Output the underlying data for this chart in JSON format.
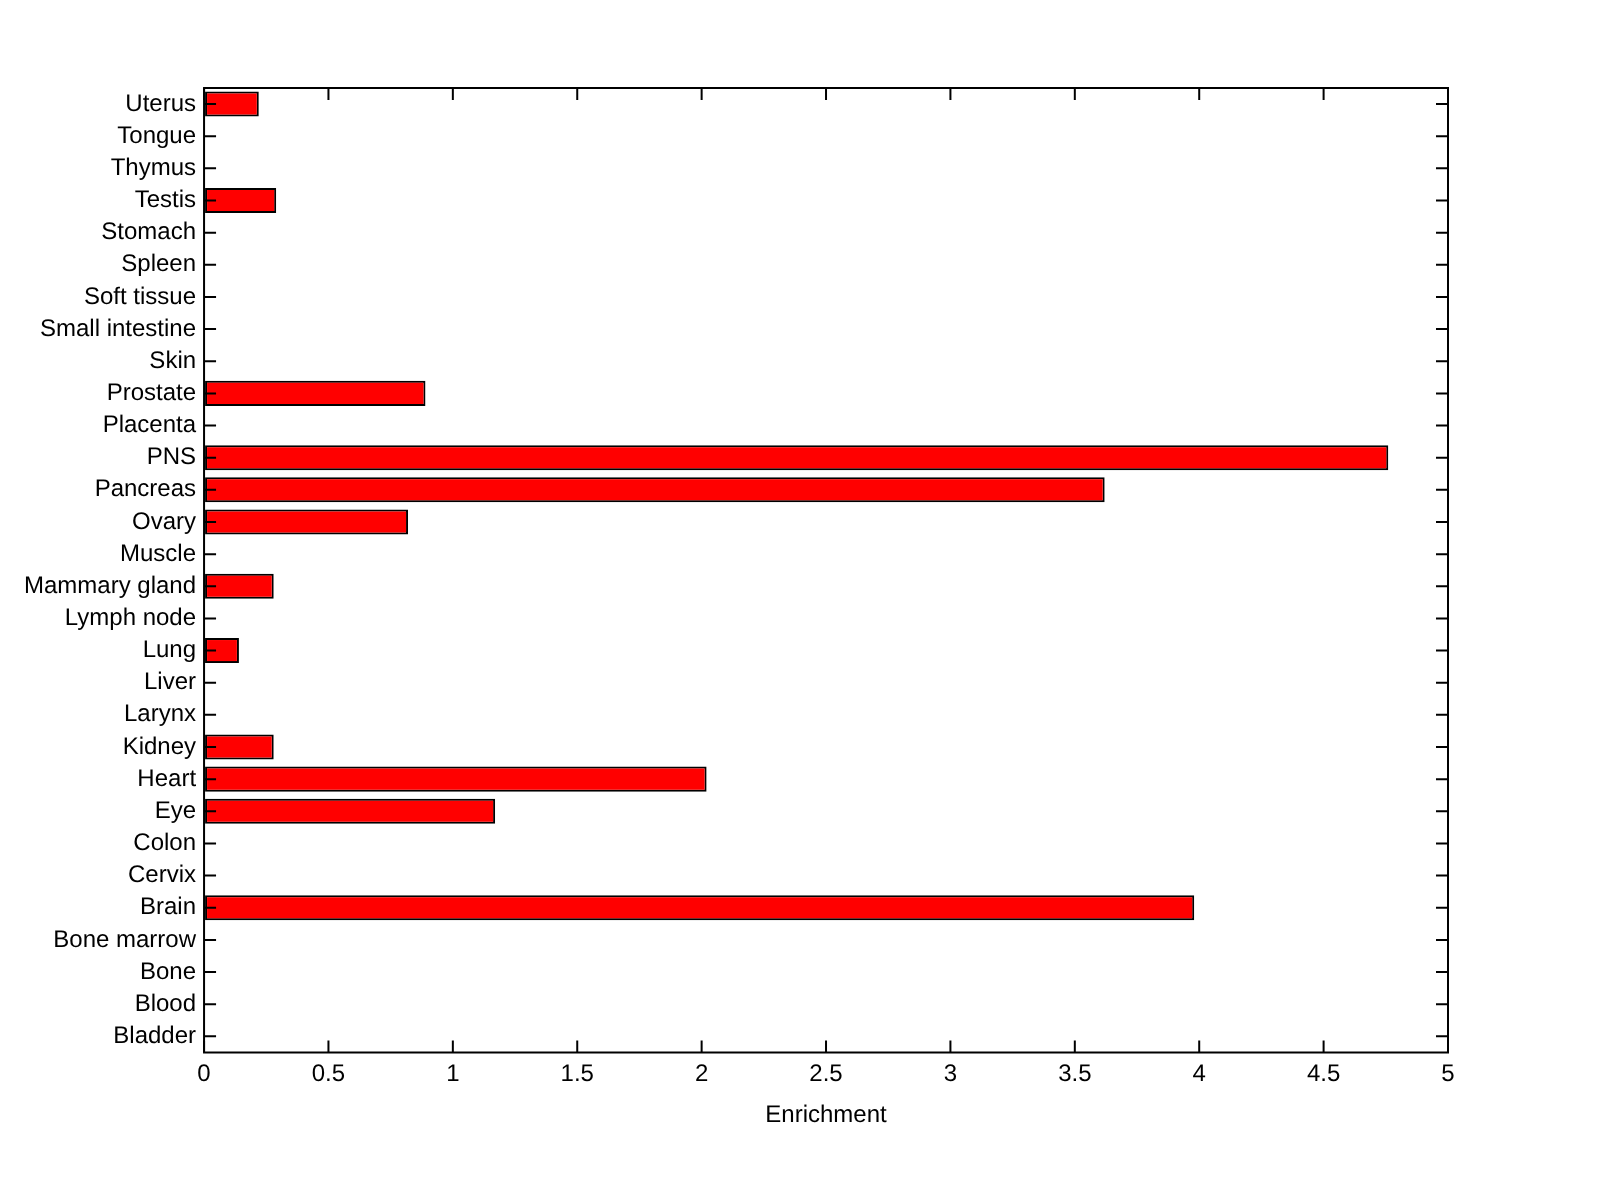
{
  "chart_data": {
    "type": "bar",
    "orientation": "horizontal",
    "xlabel": "Enrichment",
    "categories": [
      "Uterus",
      "Tongue",
      "Thymus",
      "Testis",
      "Stomach",
      "Spleen",
      "Soft tissue",
      "Small intestine",
      "Skin",
      "Prostate",
      "Placenta",
      "PNS",
      "Pancreas",
      "Ovary",
      "Muscle",
      "Mammary gland",
      "Lymph node",
      "Lung",
      "Liver",
      "Larynx",
      "Kidney",
      "Heart",
      "Eye",
      "Colon",
      "Cervix",
      "Brain",
      "Bone marrow",
      "Bone",
      "Blood",
      "Bladder"
    ],
    "values": [
      0.22,
      0,
      0,
      0.29,
      0,
      0,
      0,
      0,
      0,
      0.89,
      0,
      4.76,
      3.62,
      0.82,
      0,
      0.28,
      0,
      0.14,
      0,
      0,
      0.28,
      2.02,
      1.17,
      0,
      0,
      3.98,
      0,
      0,
      0,
      0
    ],
    "color": "#ff0000",
    "xlim": [
      0,
      5
    ],
    "xticks": [
      0,
      0.5,
      1,
      1.5,
      2,
      2.5,
      3,
      3.5,
      4,
      4.5,
      5
    ],
    "grid": false,
    "legend": false
  }
}
